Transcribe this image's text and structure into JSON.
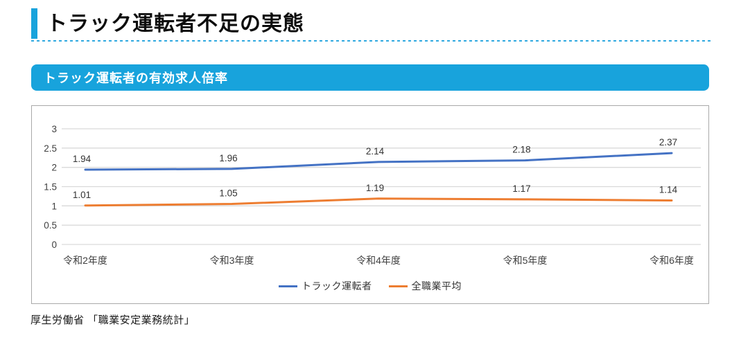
{
  "page": {
    "title": "トラック運転者不足の実態",
    "section_header": "トラック運転者の有効求人倍率",
    "source": "厚生労働省 「職業安定業務統計」"
  },
  "colors": {
    "accent_blue": "#18a3dc",
    "series_truck_blue": "#4472C4",
    "series_all_orange": "#ED7D31",
    "gridline_gray": "#d9d9d9",
    "axis_text_gray": "#404040",
    "chart_border_gray": "#a9a9a9"
  },
  "chart_data": {
    "type": "line",
    "title": "トラック運転者の有効求人倍率",
    "categories": [
      "令和2年度",
      "令和3年度",
      "令和4年度",
      "令和5年度",
      "令和6年度"
    ],
    "series": [
      {
        "name": "トラック運転者",
        "color": "#4472C4",
        "values": [
          1.94,
          1.96,
          2.14,
          2.18,
          2.37
        ]
      },
      {
        "name": "全職業平均",
        "color": "#ED7D31",
        "values": [
          1.01,
          1.05,
          1.19,
          1.17,
          1.14
        ]
      }
    ],
    "xlabel": "",
    "ylabel": "",
    "ylim": [
      0,
      3
    ],
    "ytick_step": 0.5,
    "yticks": [
      0,
      0.5,
      1,
      1.5,
      2,
      2.5,
      3
    ],
    "grid": true,
    "data_labels": true,
    "legend_position": "bottom"
  }
}
